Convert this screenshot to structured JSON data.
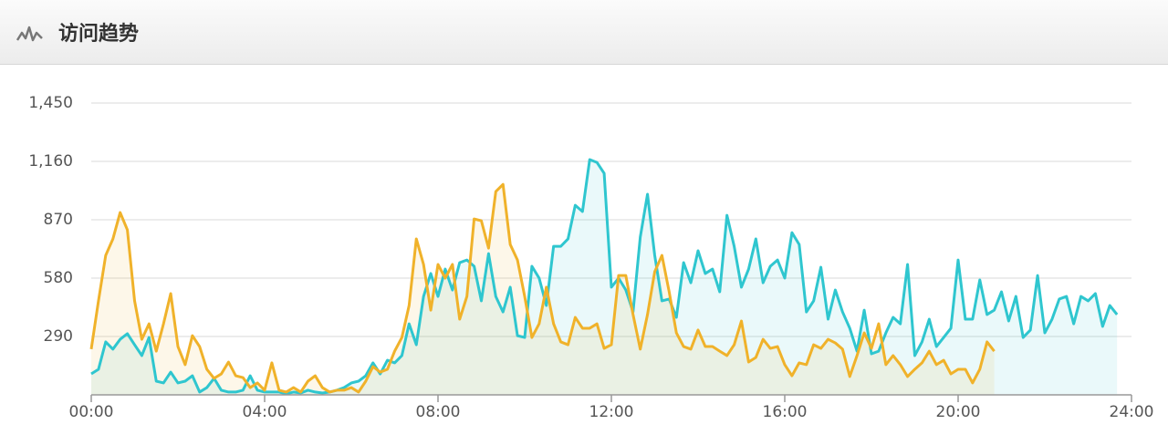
{
  "header": {
    "title": "访问趋势"
  },
  "chart_data": {
    "type": "line",
    "x": [
      0,
      10,
      20,
      30,
      40,
      50,
      60,
      70,
      80,
      90,
      100,
      110,
      120,
      130,
      140,
      150,
      160,
      170,
      180,
      190,
      200,
      210,
      220,
      230,
      240,
      250,
      260,
      270,
      280,
      290,
      300,
      310,
      320,
      330,
      340,
      350,
      360,
      370,
      380,
      390,
      400,
      410,
      420,
      430,
      440,
      450,
      460,
      470,
      480,
      490,
      500,
      510,
      520,
      530,
      540,
      550,
      560,
      570,
      580,
      590,
      600,
      610,
      620,
      630,
      640,
      650,
      660,
      670,
      680,
      690,
      700,
      710,
      720,
      730,
      740,
      750,
      760,
      770,
      780,
      790,
      800,
      810,
      820,
      830,
      840,
      850,
      860,
      870,
      880,
      890,
      900,
      910,
      920,
      930,
      940,
      950,
      960,
      970,
      980,
      990,
      1000,
      1010,
      1020,
      1030,
      1040,
      1050,
      1060,
      1070,
      1080,
      1090,
      1100,
      1110,
      1120,
      1130,
      1140,
      1150,
      1160,
      1170,
      1180,
      1190,
      1200,
      1210,
      1220,
      1230,
      1240,
      1250,
      1260,
      1270,
      1280,
      1290,
      1300,
      1310,
      1320,
      1330,
      1340,
      1350,
      1360,
      1370,
      1380,
      1390,
      1400,
      1410,
      1420
    ],
    "series": [
      {
        "color": "#2fc6cf",
        "values": [
          104,
          127,
          263,
          227,
          276,
          304,
          249,
          195,
          285,
          68,
          59,
          113,
          59,
          68,
          95,
          14,
          36,
          82,
          23,
          14,
          14,
          23,
          95,
          23,
          14,
          14,
          14,
          5,
          14,
          9,
          23,
          14,
          9,
          14,
          23,
          36,
          59,
          68,
          95,
          159,
          104,
          172,
          159,
          195,
          353,
          249,
          489,
          603,
          489,
          625,
          521,
          657,
          670,
          639,
          467,
          702,
          489,
          412,
          535,
          294,
          285,
          639,
          580,
          444,
          738,
          738,
          775,
          942,
          911,
          1169,
          1155,
          1101,
          535,
          580,
          521,
          412,
          784,
          997,
          693,
          467,
          476,
          385,
          657,
          557,
          716,
          603,
          625,
          512,
          892,
          738,
          535,
          625,
          775,
          557,
          639,
          670,
          580,
          806,
          747,
          412,
          467,
          634,
          376,
          521,
          412,
          331,
          217,
          421,
          204,
          217,
          308,
          385,
          353,
          648,
          195,
          263,
          376,
          240,
          285,
          331,
          670,
          376,
          376,
          571,
          399,
          421,
          512,
          367,
          489,
          285,
          322,
          593,
          308,
          376,
          476,
          489,
          353,
          489,
          467,
          503,
          340,
          444,
          399
        ]
      },
      {
        "color": "#f0b22a",
        "values": [
          227,
          467,
          693,
          775,
          906,
          820,
          467,
          276,
          353,
          217,
          353,
          503,
          240,
          150,
          294,
          240,
          127,
          82,
          104,
          163,
          95,
          86,
          36,
          59,
          23,
          159,
          23,
          14,
          36,
          14,
          68,
          95,
          36,
          14,
          23,
          23,
          36,
          14,
          68,
          140,
          113,
          127,
          217,
          285,
          444,
          775,
          648,
          421,
          648,
          580,
          648,
          376,
          489,
          874,
          865,
          729,
          1010,
          1046,
          747,
          670,
          489,
          285,
          353,
          535,
          353,
          263,
          249,
          385,
          331,
          331,
          353,
          231,
          249,
          593,
          593,
          399,
          227,
          399,
          612,
          693,
          512,
          308,
          240,
          227,
          322,
          240,
          240,
          217,
          195,
          249,
          367,
          163,
          186,
          276,
          231,
          240,
          150,
          95,
          159,
          150,
          249,
          231,
          276,
          258,
          227,
          91,
          195,
          308,
          231,
          353,
          150,
          195,
          150,
          91,
          127,
          159,
          217,
          150,
          172,
          104,
          127,
          127,
          59,
          127,
          263,
          217,
          null,
          null,
          null,
          null,
          null,
          null,
          null,
          null,
          null,
          null,
          null,
          null,
          null,
          null,
          null,
          null,
          null
        ]
      }
    ],
    "xlim": [
      0,
      1440
    ],
    "xticks": [
      {
        "value": 0,
        "label": "00:00"
      },
      {
        "value": 240,
        "label": "04:00"
      },
      {
        "value": 480,
        "label": "08:00"
      },
      {
        "value": 720,
        "label": "12:00"
      },
      {
        "value": 960,
        "label": "16:00"
      },
      {
        "value": 1200,
        "label": "20:00"
      },
      {
        "value": 1440,
        "label": "24:00"
      }
    ],
    "ylim": [
      0,
      1450
    ],
    "yticks": [
      290,
      580,
      870,
      {
        "value": 1160,
        "label": "1,160"
      },
      {
        "value": 1450,
        "label": "1,450"
      }
    ],
    "grid": true
  }
}
